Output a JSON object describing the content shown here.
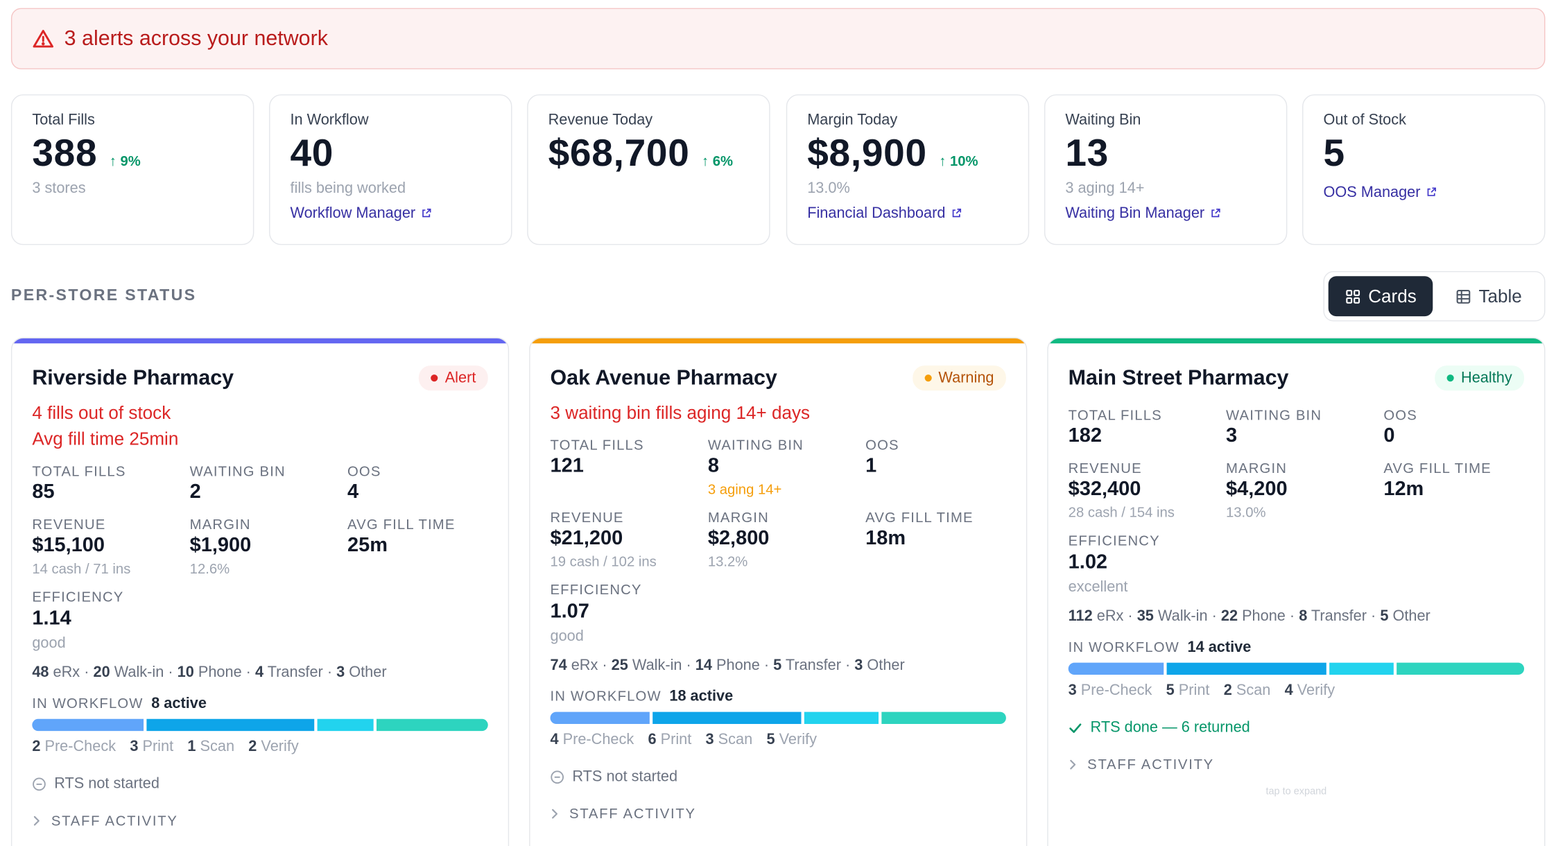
{
  "banner": {
    "text": "3 alerts across your network"
  },
  "kpis": [
    {
      "label": "Total Fills",
      "value": "388",
      "delta": "↑ 9%",
      "sub": "3 stores",
      "link": ""
    },
    {
      "label": "In Workflow",
      "value": "40",
      "delta": "",
      "sub": "fills being worked",
      "link": "Workflow Manager"
    },
    {
      "label": "Revenue Today",
      "value": "$68,700",
      "delta": "↑ 6%",
      "sub": "",
      "link": ""
    },
    {
      "label": "Margin Today",
      "value": "$8,900",
      "delta": "↑ 10%",
      "sub": "13.0%",
      "link": "Financial Dashboard"
    },
    {
      "label": "Waiting Bin",
      "value": "13",
      "delta": "",
      "sub": "3 aging 14+",
      "link": "Waiting Bin Manager"
    },
    {
      "label": "Out of Stock",
      "value": "5",
      "delta": "",
      "sub": "",
      "link": "OOS Manager"
    }
  ],
  "section": {
    "title": "PER-STORE STATUS"
  },
  "view_toggle": {
    "cards_label": "Cards",
    "table_label": "Table",
    "selected": "Cards"
  },
  "icons": {
    "alert": "warning-triangle-icon",
    "cards": "grid-icon",
    "table": "table-icon",
    "external": "external-link-icon",
    "rts_pending": "minus-circle-icon",
    "rts_done": "check-icon",
    "expand": "chevron-right-icon"
  },
  "colors": {
    "alert": "#dc2626",
    "warning": "#f59e0b",
    "healthy": "#10b981",
    "precheck": "#60a5fa",
    "print": "#0ea5e9",
    "scan": "#22d3ee",
    "verify": "#2dd4bf"
  },
  "stores": [
    {
      "name": "Riverside Pharmacy",
      "status": "Alert",
      "accent": "#6366f1",
      "issues": [
        "4 fills out of stock",
        "Avg fill time 25min"
      ],
      "labels": {
        "total_fills": "TOTAL FILLS",
        "waiting_bin": "WAITING BIN",
        "oos": "OOS",
        "revenue": "REVENUE",
        "margin": "MARGIN",
        "avg_fill_time": "AVG FILL TIME",
        "efficiency": "EFFICIENCY",
        "in_workflow": "IN WORKFLOW"
      },
      "total_fills": "85",
      "waiting_bin": "2",
      "waiting_note": "",
      "oos": "4",
      "revenue": "$15,100",
      "revenue_note": "14 cash / 71 ins",
      "margin": "$1,900",
      "margin_note": "12.6%",
      "avg_fill_time": "25m",
      "efficiency": "1.14",
      "efficiency_note": "good",
      "sources": [
        {
          "n": "48",
          "l": "eRx"
        },
        {
          "n": "20",
          "l": "Walk-in"
        },
        {
          "n": "10",
          "l": "Phone"
        },
        {
          "n": "4",
          "l": "Transfer"
        },
        {
          "n": "3",
          "l": "Other"
        }
      ],
      "workflow_active": "8 active",
      "stages": [
        {
          "n": "2",
          "l": "Pre-Check"
        },
        {
          "n": "3",
          "l": "Print"
        },
        {
          "n": "1",
          "l": "Scan"
        },
        {
          "n": "2",
          "l": "Verify"
        }
      ],
      "rts": "RTS not started",
      "rts_done": false,
      "staff": "STAFF ACTIVITY",
      "tap_hint": ""
    },
    {
      "name": "Oak Avenue Pharmacy",
      "status": "Warning",
      "accent": "#f59e0b",
      "issues": [
        "3 waiting bin fills aging 14+ days"
      ],
      "labels": {
        "total_fills": "TOTAL FILLS",
        "waiting_bin": "WAITING BIN",
        "oos": "OOS",
        "revenue": "REVENUE",
        "margin": "MARGIN",
        "avg_fill_time": "AVG FILL TIME",
        "efficiency": "EFFICIENCY",
        "in_workflow": "IN WORKFLOW"
      },
      "total_fills": "121",
      "waiting_bin": "8",
      "waiting_note": "3 aging 14+",
      "oos": "1",
      "revenue": "$21,200",
      "revenue_note": "19 cash / 102 ins",
      "margin": "$2,800",
      "margin_note": "13.2%",
      "avg_fill_time": "18m",
      "efficiency": "1.07",
      "efficiency_note": "good",
      "sources": [
        {
          "n": "74",
          "l": "eRx"
        },
        {
          "n": "25",
          "l": "Walk-in"
        },
        {
          "n": "14",
          "l": "Phone"
        },
        {
          "n": "5",
          "l": "Transfer"
        },
        {
          "n": "3",
          "l": "Other"
        }
      ],
      "workflow_active": "18 active",
      "stages": [
        {
          "n": "4",
          "l": "Pre-Check"
        },
        {
          "n": "6",
          "l": "Print"
        },
        {
          "n": "3",
          "l": "Scan"
        },
        {
          "n": "5",
          "l": "Verify"
        }
      ],
      "rts": "RTS not started",
      "rts_done": false,
      "staff": "STAFF ACTIVITY",
      "tap_hint": ""
    },
    {
      "name": "Main Street Pharmacy",
      "status": "Healthy",
      "accent": "#10b981",
      "issues": [],
      "labels": {
        "total_fills": "TOTAL FILLS",
        "waiting_bin": "WAITING BIN",
        "oos": "OOS",
        "revenue": "REVENUE",
        "margin": "MARGIN",
        "avg_fill_time": "AVG FILL TIME",
        "efficiency": "EFFICIENCY",
        "in_workflow": "IN WORKFLOW"
      },
      "total_fills": "182",
      "waiting_bin": "3",
      "waiting_note": "",
      "oos": "0",
      "revenue": "$32,400",
      "revenue_note": "28 cash / 154 ins",
      "margin": "$4,200",
      "margin_note": "13.0%",
      "avg_fill_time": "12m",
      "efficiency": "1.02",
      "efficiency_note": "excellent",
      "sources": [
        {
          "n": "112",
          "l": "eRx"
        },
        {
          "n": "35",
          "l": "Walk-in"
        },
        {
          "n": "22",
          "l": "Phone"
        },
        {
          "n": "8",
          "l": "Transfer"
        },
        {
          "n": "5",
          "l": "Other"
        }
      ],
      "workflow_active": "14 active",
      "stages": [
        {
          "n": "3",
          "l": "Pre-Check"
        },
        {
          "n": "5",
          "l": "Print"
        },
        {
          "n": "2",
          "l": "Scan"
        },
        {
          "n": "4",
          "l": "Verify"
        }
      ],
      "rts": "RTS done — 6 returned",
      "rts_done": true,
      "staff": "STAFF ACTIVITY",
      "tap_hint": "tap to expand"
    }
  ]
}
